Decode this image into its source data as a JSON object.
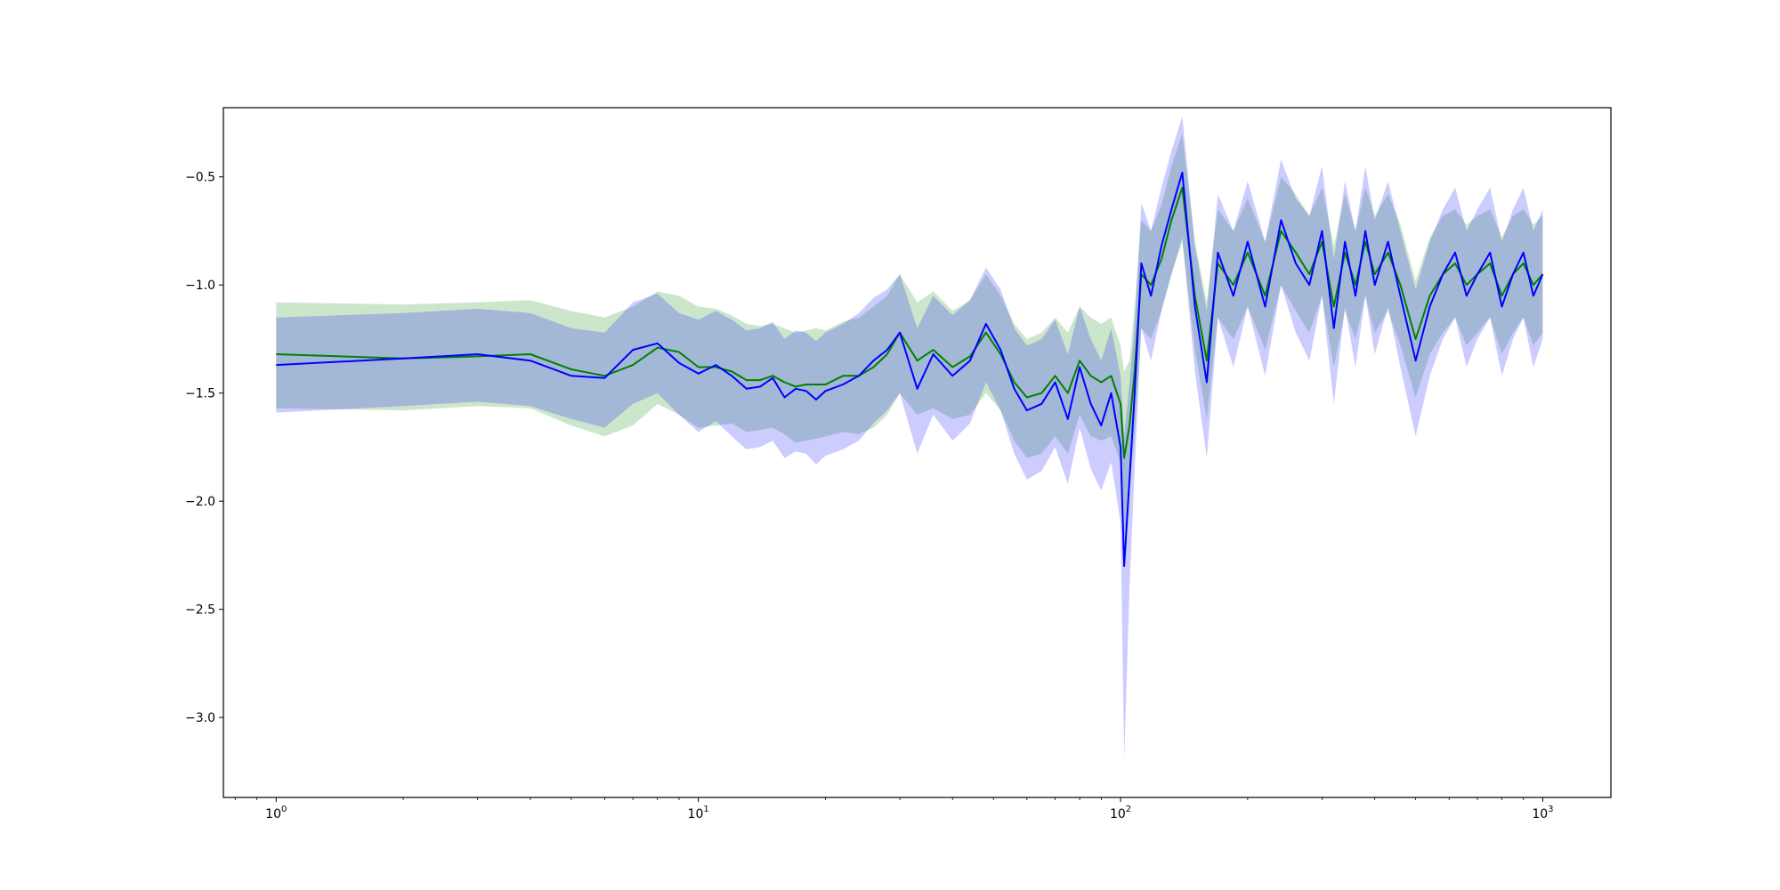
{
  "chart_data": {
    "type": "line",
    "title": "",
    "xlabel": "",
    "ylabel": "",
    "xscale": "log",
    "xlim": [
      0.75,
      1450
    ],
    "ylim": [
      -3.37,
      -0.18
    ],
    "grid": false,
    "legend": "none",
    "x_ticks": [
      {
        "base": "10",
        "exp": "0",
        "value": 1
      },
      {
        "base": "10",
        "exp": "1",
        "value": 10
      },
      {
        "base": "10",
        "exp": "2",
        "value": 100
      },
      {
        "base": "10",
        "exp": "3",
        "value": 1000
      }
    ],
    "y_ticks": [
      {
        "label": "−0.5",
        "value": -0.5
      },
      {
        "label": "−1.0",
        "value": -1.0
      },
      {
        "label": "−1.5",
        "value": -1.5
      },
      {
        "label": "−2.0",
        "value": -2.0
      },
      {
        "label": "−2.5",
        "value": -2.5
      },
      {
        "label": "−3.0",
        "value": -3.0
      }
    ],
    "series": [
      {
        "color": "#008000",
        "band_color": "#008000",
        "x": [
          1,
          2,
          3,
          4,
          5,
          6,
          7,
          8,
          9,
          10,
          11,
          12,
          13,
          14,
          15,
          16,
          17,
          18,
          19,
          20,
          22,
          24,
          26,
          28,
          30,
          33,
          36,
          40,
          44,
          48,
          52,
          56,
          60,
          65,
          70,
          75,
          80,
          85,
          90,
          95,
          100,
          102,
          105,
          108,
          112,
          118,
          125,
          132,
          140,
          150,
          160,
          170,
          185,
          200,
          220,
          240,
          260,
          280,
          300,
          320,
          340,
          360,
          380,
          400,
          430,
          460,
          500,
          540,
          580,
          620,
          660,
          700,
          750,
          800,
          850,
          900,
          950,
          1000
        ],
        "values": [
          -1.32,
          -1.34,
          -1.33,
          -1.32,
          -1.39,
          -1.42,
          -1.37,
          -1.29,
          -1.31,
          -1.38,
          -1.38,
          -1.4,
          -1.44,
          -1.44,
          -1.42,
          -1.45,
          -1.47,
          -1.46,
          -1.46,
          -1.46,
          -1.42,
          -1.42,
          -1.38,
          -1.32,
          -1.22,
          -1.35,
          -1.3,
          -1.38,
          -1.33,
          -1.22,
          -1.32,
          -1.45,
          -1.52,
          -1.5,
          -1.42,
          -1.5,
          -1.35,
          -1.42,
          -1.45,
          -1.42,
          -1.55,
          -1.8,
          -1.65,
          -1.4,
          -0.95,
          -1.0,
          -0.88,
          -0.7,
          -0.55,
          -1.05,
          -1.35,
          -0.9,
          -1.0,
          -0.85,
          -1.05,
          -0.75,
          -0.85,
          -0.95,
          -0.8,
          -1.1,
          -0.85,
          -1.0,
          -0.8,
          -0.95,
          -0.85,
          -1.0,
          -1.25,
          -1.05,
          -0.95,
          -0.9,
          -1.0,
          -0.95,
          -0.9,
          -1.05,
          -0.95,
          -0.9,
          -1.0,
          -0.95
        ],
        "lower": [
          -1.57,
          -1.58,
          -1.56,
          -1.57,
          -1.65,
          -1.7,
          -1.65,
          -1.55,
          -1.6,
          -1.66,
          -1.65,
          -1.64,
          -1.68,
          -1.67,
          -1.66,
          -1.69,
          -1.73,
          -1.72,
          -1.71,
          -1.7,
          -1.68,
          -1.69,
          -1.66,
          -1.6,
          -1.5,
          -1.6,
          -1.57,
          -1.62,
          -1.6,
          -1.5,
          -1.58,
          -1.72,
          -1.8,
          -1.78,
          -1.7,
          -1.78,
          -1.6,
          -1.7,
          -1.72,
          -1.7,
          -1.82,
          -2.2,
          -1.95,
          -1.7,
          -1.2,
          -1.25,
          -1.12,
          -0.95,
          -0.8,
          -1.3,
          -1.62,
          -1.15,
          -1.25,
          -1.1,
          -1.3,
          -1.0,
          -1.12,
          -1.22,
          -1.05,
          -1.38,
          -1.12,
          -1.25,
          -1.05,
          -1.22,
          -1.12,
          -1.28,
          -1.52,
          -1.32,
          -1.22,
          -1.15,
          -1.28,
          -1.22,
          -1.15,
          -1.32,
          -1.22,
          -1.15,
          -1.28,
          -1.22
        ],
        "upper": [
          -1.08,
          -1.09,
          -1.08,
          -1.07,
          -1.12,
          -1.15,
          -1.1,
          -1.03,
          -1.05,
          -1.1,
          -1.11,
          -1.14,
          -1.18,
          -1.19,
          -1.18,
          -1.2,
          -1.22,
          -1.21,
          -1.2,
          -1.21,
          -1.17,
          -1.15,
          -1.1,
          -1.05,
          -0.95,
          -1.08,
          -1.03,
          -1.12,
          -1.07,
          -0.95,
          -1.05,
          -1.18,
          -1.25,
          -1.22,
          -1.15,
          -1.22,
          -1.1,
          -1.15,
          -1.18,
          -1.15,
          -1.28,
          -1.4,
          -1.35,
          -1.1,
          -0.7,
          -0.75,
          -0.63,
          -0.45,
          -0.3,
          -0.8,
          -1.08,
          -0.65,
          -0.75,
          -0.6,
          -0.8,
          -0.5,
          -0.58,
          -0.68,
          -0.55,
          -0.82,
          -0.58,
          -0.75,
          -0.55,
          -0.68,
          -0.58,
          -0.72,
          -0.98,
          -0.78,
          -0.68,
          -0.65,
          -0.72,
          -0.68,
          -0.65,
          -0.78,
          -0.68,
          -0.65,
          -0.72,
          -0.68
        ]
      },
      {
        "color": "#0000ff",
        "band_color": "#0000ff",
        "x": [
          1,
          2,
          3,
          4,
          5,
          6,
          7,
          8,
          9,
          10,
          11,
          12,
          13,
          14,
          15,
          16,
          17,
          18,
          19,
          20,
          22,
          24,
          26,
          28,
          30,
          33,
          36,
          40,
          44,
          48,
          52,
          56,
          60,
          65,
          70,
          75,
          80,
          85,
          90,
          95,
          100,
          102,
          105,
          108,
          112,
          118,
          125,
          132,
          140,
          150,
          160,
          170,
          185,
          200,
          220,
          240,
          260,
          280,
          300,
          320,
          340,
          360,
          380,
          400,
          430,
          460,
          500,
          540,
          580,
          620,
          660,
          700,
          750,
          800,
          850,
          900,
          950,
          1000
        ],
        "values": [
          -1.37,
          -1.34,
          -1.32,
          -1.35,
          -1.42,
          -1.43,
          -1.3,
          -1.27,
          -1.36,
          -1.41,
          -1.37,
          -1.42,
          -1.48,
          -1.47,
          -1.43,
          -1.52,
          -1.48,
          -1.49,
          -1.53,
          -1.49,
          -1.46,
          -1.42,
          -1.35,
          -1.3,
          -1.22,
          -1.48,
          -1.32,
          -1.42,
          -1.35,
          -1.18,
          -1.3,
          -1.48,
          -1.58,
          -1.55,
          -1.45,
          -1.62,
          -1.38,
          -1.55,
          -1.65,
          -1.5,
          -1.75,
          -2.3,
          -1.9,
          -1.5,
          -0.9,
          -1.05,
          -0.82,
          -0.65,
          -0.48,
          -1.1,
          -1.45,
          -0.85,
          -1.05,
          -0.8,
          -1.1,
          -0.7,
          -0.9,
          -1.0,
          -0.75,
          -1.2,
          -0.8,
          -1.05,
          -0.75,
          -1.0,
          -0.8,
          -1.05,
          -1.35,
          -1.1,
          -0.95,
          -0.85,
          -1.05,
          -0.95,
          -0.85,
          -1.1,
          -0.95,
          -0.85,
          -1.05,
          -0.95
        ],
        "lower": [
          -1.59,
          -1.56,
          -1.54,
          -1.56,
          -1.62,
          -1.66,
          -1.55,
          -1.5,
          -1.6,
          -1.68,
          -1.63,
          -1.7,
          -1.76,
          -1.75,
          -1.72,
          -1.8,
          -1.77,
          -1.78,
          -1.83,
          -1.79,
          -1.76,
          -1.72,
          -1.64,
          -1.58,
          -1.5,
          -1.78,
          -1.6,
          -1.72,
          -1.64,
          -1.45,
          -1.58,
          -1.78,
          -1.9,
          -1.86,
          -1.75,
          -1.92,
          -1.66,
          -1.85,
          -1.95,
          -1.82,
          -2.1,
          -3.2,
          -2.4,
          -1.85,
          -1.2,
          -1.35,
          -1.12,
          -0.95,
          -0.78,
          -1.4,
          -1.8,
          -1.15,
          -1.38,
          -1.1,
          -1.42,
          -1.0,
          -1.22,
          -1.35,
          -1.05,
          -1.55,
          -1.1,
          -1.38,
          -1.05,
          -1.32,
          -1.1,
          -1.38,
          -1.7,
          -1.42,
          -1.25,
          -1.15,
          -1.38,
          -1.25,
          -1.15,
          -1.42,
          -1.25,
          -1.15,
          -1.38,
          -1.25
        ],
        "upper": [
          -1.15,
          -1.13,
          -1.11,
          -1.13,
          -1.2,
          -1.22,
          -1.08,
          -1.04,
          -1.13,
          -1.16,
          -1.12,
          -1.16,
          -1.21,
          -1.2,
          -1.17,
          -1.25,
          -1.21,
          -1.22,
          -1.26,
          -1.22,
          -1.18,
          -1.13,
          -1.06,
          -1.02,
          -0.95,
          -1.2,
          -1.05,
          -1.14,
          -1.07,
          -0.92,
          -1.02,
          -1.2,
          -1.28,
          -1.25,
          -1.16,
          -1.32,
          -1.1,
          -1.25,
          -1.35,
          -1.2,
          -1.42,
          -1.7,
          -1.45,
          -1.18,
          -0.62,
          -0.75,
          -0.55,
          -0.38,
          -0.22,
          -0.82,
          -1.12,
          -0.58,
          -0.75,
          -0.52,
          -0.8,
          -0.42,
          -0.6,
          -0.68,
          -0.45,
          -0.88,
          -0.52,
          -0.75,
          -0.45,
          -0.7,
          -0.52,
          -0.75,
          -1.02,
          -0.8,
          -0.65,
          -0.55,
          -0.75,
          -0.65,
          -0.55,
          -0.8,
          -0.65,
          -0.55,
          -0.75,
          -0.65
        ]
      }
    ]
  }
}
